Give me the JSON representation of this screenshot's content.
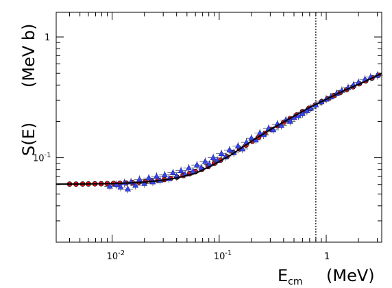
{
  "chart_data": {
    "type": "scatter",
    "title": "",
    "xlabel": {
      "main": "E",
      "subscript": "cm",
      "unit": "(MeV)"
    },
    "ylabel": {
      "main": "S(E)",
      "unit": "(MeV b)"
    },
    "xscale": "log",
    "yscale": "log",
    "xlim": [
      0.003,
      3.3
    ],
    "ylim": [
      0.02,
      1.6
    ],
    "x_ticks": [
      {
        "value": 0.01,
        "base": "10",
        "exp": "-2"
      },
      {
        "value": 0.1,
        "base": "10",
        "exp": "-1"
      },
      {
        "value": 1,
        "base": "1",
        "exp": ""
      }
    ],
    "y_ticks": [
      {
        "value": 0.1,
        "base": "10",
        "exp": "-1"
      },
      {
        "value": 1,
        "base": "1",
        "exp": ""
      }
    ],
    "vertical_line": {
      "x": 0.8,
      "style": "dotted"
    },
    "grid": false,
    "series": [
      {
        "marker": "circle",
        "color": "#e0161b",
        "x": [
          0.004,
          0.0046,
          0.0053,
          0.006,
          0.0069,
          0.0079,
          0.009,
          0.0103,
          0.0118,
          0.0135,
          0.0155,
          0.0178,
          0.0204,
          0.0234,
          0.0268,
          0.0307,
          0.0352,
          0.0403,
          0.046,
          0.053,
          0.06,
          0.069,
          0.079,
          0.09,
          0.103,
          0.118,
          0.135,
          0.155,
          0.178,
          0.204,
          0.234,
          0.268,
          0.307,
          0.352,
          0.403,
          0.46,
          0.53,
          0.6,
          0.69,
          0.79,
          0.9,
          1.03,
          1.18,
          1.35,
          1.55,
          1.78,
          2.04,
          2.34,
          2.68,
          3.07
        ],
        "y": [
          0.0605,
          0.0605,
          0.0606,
          0.0607,
          0.0608,
          0.0609,
          0.0611,
          0.0613,
          0.0615,
          0.0618,
          0.0622,
          0.0627,
          0.0633,
          0.064,
          0.0649,
          0.066,
          0.0674,
          0.0691,
          0.0712,
          0.0738,
          0.0768,
          0.0804,
          0.0847,
          0.0897,
          0.0955,
          0.102,
          0.11,
          0.118,
          0.127,
          0.137,
          0.148,
          0.159,
          0.171,
          0.184,
          0.197,
          0.211,
          0.226,
          0.241,
          0.257,
          0.273,
          0.29,
          0.308,
          0.327,
          0.346,
          0.366,
          0.387,
          0.41,
          0.433,
          0.457,
          0.482
        ]
      },
      {
        "marker": "triangle",
        "color": "#3446f0",
        "x": [
          0.0095,
          0.011,
          0.012,
          0.013,
          0.014,
          0.015,
          0.0165,
          0.018,
          0.02,
          0.022,
          0.024,
          0.026,
          0.028,
          0.031,
          0.034,
          0.037,
          0.04,
          0.044,
          0.048,
          0.052,
          0.057,
          0.062,
          0.068,
          0.074,
          0.081,
          0.088,
          0.096,
          0.105,
          0.115,
          0.125,
          0.137,
          0.15,
          0.165,
          0.18,
          0.2,
          0.22,
          0.24,
          0.26,
          0.29,
          0.32,
          0.35,
          0.38,
          0.42,
          0.46,
          0.5,
          0.55,
          0.6,
          0.66,
          0.72,
          0.8,
          0.9,
          1.0,
          1.1,
          1.25,
          1.4,
          1.6,
          1.8,
          2.0,
          2.3,
          2.6,
          3.0
        ],
        "y": [
          0.058,
          0.06,
          0.057,
          0.062,
          0.055,
          0.063,
          0.059,
          0.066,
          0.061,
          0.068,
          0.063,
          0.07,
          0.065,
          0.072,
          0.067,
          0.075,
          0.07,
          0.078,
          0.073,
          0.082,
          0.077,
          0.087,
          0.082,
          0.093,
          0.088,
          0.1,
          0.095,
          0.108,
          0.102,
          0.116,
          0.11,
          0.125,
          0.118,
          0.134,
          0.145,
          0.14,
          0.16,
          0.155,
          0.175,
          0.17,
          0.19,
          0.185,
          0.205,
          0.2,
          0.215,
          0.222,
          0.232,
          0.245,
          0.257,
          0.273,
          0.29,
          0.305,
          0.318,
          0.34,
          0.36,
          0.38,
          0.4,
          0.42,
          0.445,
          0.465,
          0.48
        ]
      }
    ],
    "fit_curve": {
      "color": "#000000",
      "x": [
        0.003,
        0.005,
        0.008,
        0.012,
        0.018,
        0.027,
        0.04,
        0.06,
        0.09,
        0.13,
        0.2,
        0.3,
        0.45,
        0.7,
        1.0,
        1.5,
        2.2,
        3.3
      ],
      "y": [
        0.0605,
        0.0606,
        0.0609,
        0.0614,
        0.0624,
        0.0644,
        0.068,
        0.0742,
        0.0883,
        0.106,
        0.137,
        0.171,
        0.21,
        0.261,
        0.305,
        0.363,
        0.42,
        0.5
      ]
    }
  }
}
